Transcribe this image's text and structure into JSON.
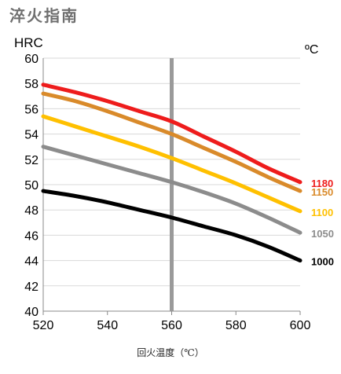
{
  "page": {
    "title": "淬火指南"
  },
  "chart_data": {
    "type": "line",
    "title": "淬火指南",
    "xlabel": "回火温度（℃）",
    "ylabel": "HRC",
    "series_label_title": "ºC",
    "xlim": [
      520,
      600
    ],
    "ylim": [
      40,
      60
    ],
    "x_ticks": [
      520,
      540,
      560,
      580,
      600
    ],
    "y_ticks": [
      40,
      42,
      44,
      46,
      48,
      50,
      52,
      54,
      56,
      58,
      60
    ],
    "grid": "horizontal",
    "reference_line_x": 560,
    "x": [
      520,
      530,
      540,
      550,
      560,
      570,
      580,
      590,
      600
    ],
    "series": [
      {
        "name": "1180",
        "color": "#ee1c1c",
        "values": [
          57.9,
          57.3,
          56.6,
          55.8,
          55.0,
          53.8,
          52.6,
          51.3,
          50.2
        ]
      },
      {
        "name": "1150",
        "color": "#d98a2a",
        "values": [
          57.2,
          56.6,
          55.8,
          54.9,
          54.0,
          52.9,
          51.8,
          50.6,
          49.5
        ]
      },
      {
        "name": "1100",
        "color": "#ffc000",
        "values": [
          55.4,
          54.6,
          53.8,
          53.0,
          52.1,
          51.1,
          50.1,
          49.0,
          47.9
        ]
      },
      {
        "name": "1050",
        "color": "#8c8c8c",
        "values": [
          53.0,
          52.3,
          51.6,
          50.9,
          50.2,
          49.4,
          48.5,
          47.4,
          46.2
        ]
      },
      {
        "name": "1000",
        "color": "#000000",
        "values": [
          49.5,
          49.1,
          48.6,
          48.0,
          47.4,
          46.7,
          46.0,
          45.1,
          44.0
        ]
      }
    ]
  }
}
